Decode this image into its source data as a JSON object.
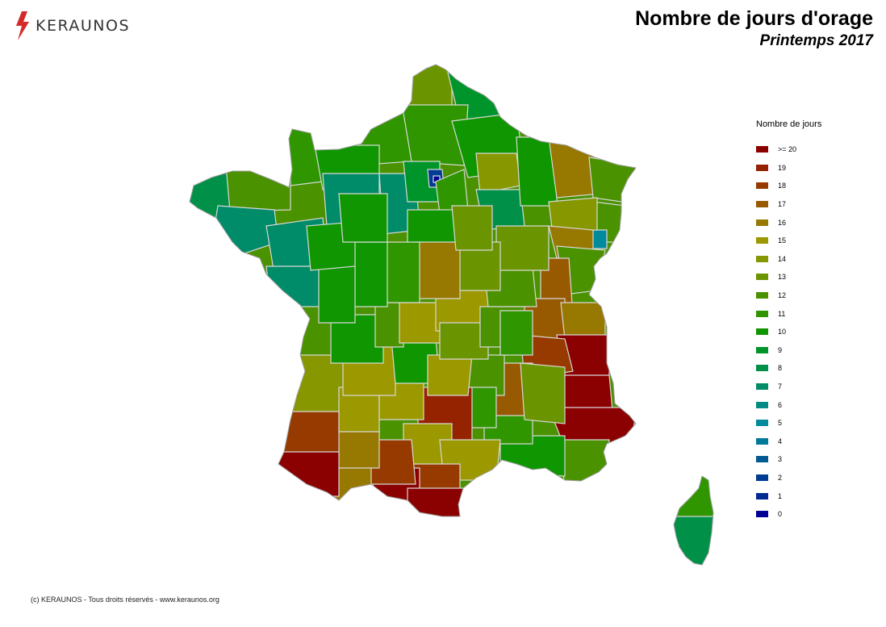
{
  "brand": {
    "name": "KERAUNOS",
    "logo_icon": "lightning-bolt-icon",
    "logo_color": "#d42a2a"
  },
  "header": {
    "title": "Nombre de jours d'orage",
    "subtitle": "Printemps 2017"
  },
  "legend": {
    "title": "Nombre de jours",
    "items": [
      {
        "label": ">= 20",
        "color": "#8b0000"
      },
      {
        "label": "19",
        "color": "#952300"
      },
      {
        "label": "18",
        "color": "#973a00"
      },
      {
        "label": "17",
        "color": "#985a00"
      },
      {
        "label": "16",
        "color": "#977800"
      },
      {
        "label": "15",
        "color": "#9c9800"
      },
      {
        "label": "14",
        "color": "#879700"
      },
      {
        "label": "13",
        "color": "#6b9500"
      },
      {
        "label": "12",
        "color": "#4a9200"
      },
      {
        "label": "11",
        "color": "#309600"
      },
      {
        "label": "10",
        "color": "#109600"
      },
      {
        "label": "9",
        "color": "#00952a"
      },
      {
        "label": "8",
        "color": "#009048"
      },
      {
        "label": "7",
        "color": "#008c68"
      },
      {
        "label": "6",
        "color": "#008c84"
      },
      {
        "label": "5",
        "color": "#008a9c"
      },
      {
        "label": "4",
        "color": "#00789a"
      },
      {
        "label": "3",
        "color": "#005a94"
      },
      {
        "label": "2",
        "color": "#003c92"
      },
      {
        "label": "1",
        "color": "#002a90"
      },
      {
        "label": "0",
        "color": "#000096"
      }
    ]
  },
  "footer": {
    "copyright": "(c) KERAUNOS - Tous droits réservés - www.keraunos.org"
  }
}
